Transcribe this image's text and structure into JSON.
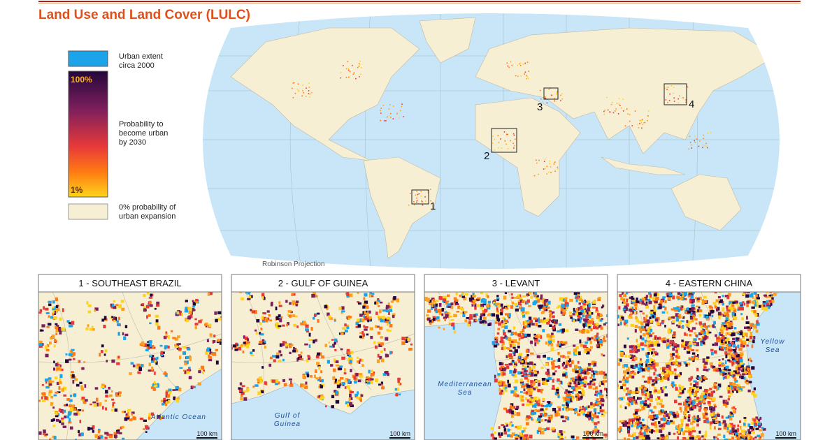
{
  "header": {
    "title": "Land Use and Land Cover (LULC)"
  },
  "legend": {
    "urban": [
      "Urban extent",
      "circa 2000"
    ],
    "probability": {
      "max": "100%",
      "min": "1%",
      "label": [
        "Probability to",
        "become urban",
        "by 2030"
      ]
    },
    "zero": [
      "0% probability of",
      "urban expansion"
    ]
  },
  "map": {
    "projection": "Robinson Projection",
    "markers": [
      "1",
      "2",
      "3",
      "4"
    ]
  },
  "panels": [
    {
      "title": "1 - SOUTHEAST BRAZIL",
      "sea": [
        "Atlantic Ocean"
      ],
      "scale": "100 km"
    },
    {
      "title": "2 - GULF OF GUINEA",
      "sea": [
        "Gulf of",
        "Guinea"
      ],
      "scale": "100 km"
    },
    {
      "title": "3 - LEVANT",
      "sea": [
        "Mediterranean",
        "Sea"
      ],
      "scale": "100 km"
    },
    {
      "title": "4 - EASTERN CHINA",
      "sea": [
        "Yellow",
        "Sea"
      ],
      "scale": "100 km"
    }
  ]
}
